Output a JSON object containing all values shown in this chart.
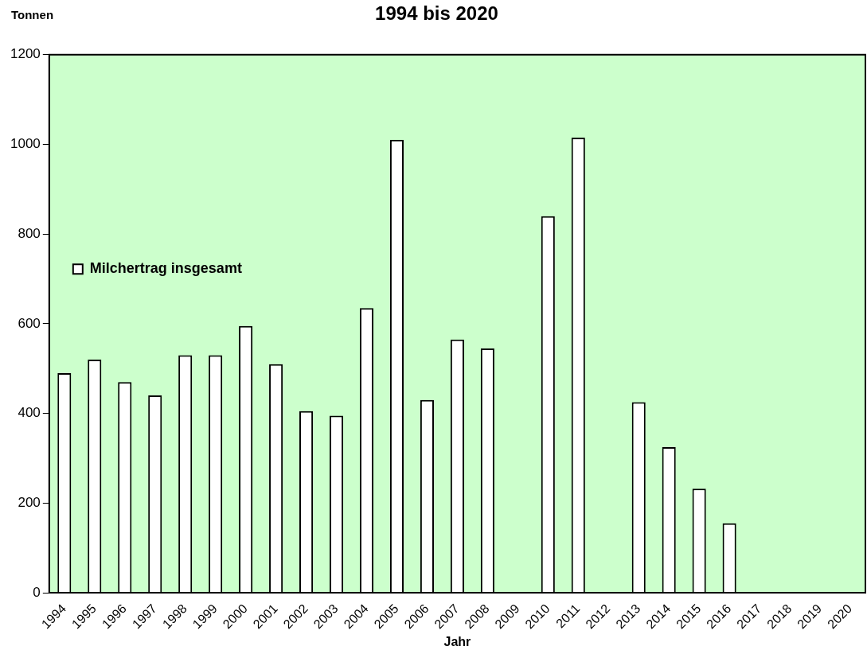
{
  "chart_data": {
    "type": "bar",
    "title": "1994 bis 2020",
    "xlabel": "Jahr",
    "ylabel": "Tonnen",
    "categories": [
      "1994",
      "1995",
      "1996",
      "1997",
      "1998",
      "1999",
      "2000",
      "2001",
      "2002",
      "2003",
      "2004",
      "2005",
      "2006",
      "2007",
      "2008",
      "2009",
      "2010",
      "2011",
      "2012",
      "2013",
      "2014",
      "2015",
      "2016",
      "2017",
      "2018",
      "2019",
      "2020"
    ],
    "series": [
      {
        "name": "Milchertrag insgesamt",
        "color": "#ffffff",
        "values": [
          490,
          520,
          470,
          440,
          530,
          530,
          595,
          510,
          405,
          395,
          635,
          1010,
          430,
          565,
          545,
          null,
          840,
          1015,
          null,
          425,
          325,
          232,
          155,
          null,
          null,
          null,
          null
        ]
      }
    ],
    "ylim": [
      0,
      1200
    ],
    "yticks": [
      0,
      200,
      400,
      600,
      800,
      1000,
      1200
    ],
    "grid": false,
    "legend": "top"
  }
}
